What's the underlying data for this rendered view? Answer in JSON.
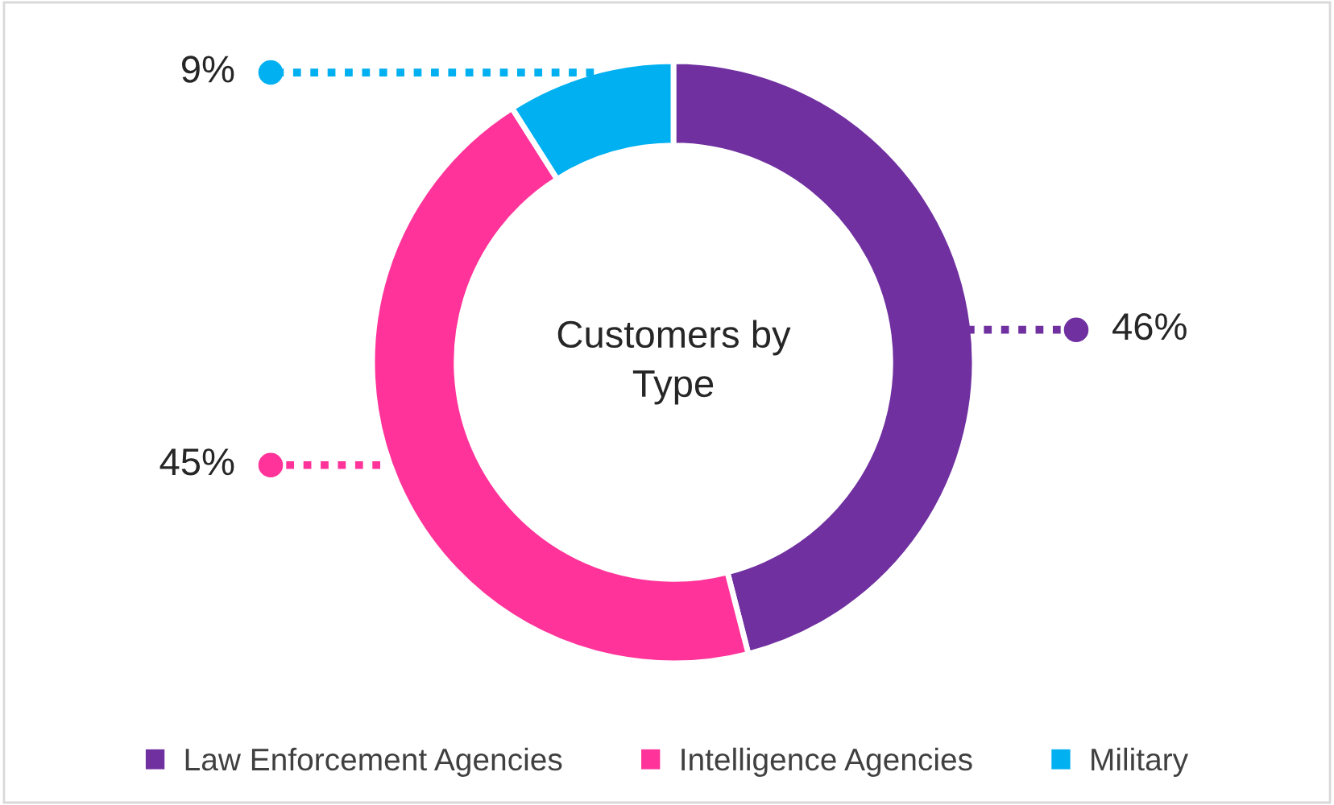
{
  "chart_data": {
    "type": "donut",
    "title": "Customers by\nType",
    "categories": [
      "Law Enforcement Agencies",
      "Intelligence Agencies",
      "Military"
    ],
    "values": [
      46,
      45,
      9
    ],
    "colors": [
      "#7030a0",
      "#ff3399",
      "#00b0f0"
    ],
    "value_labels": [
      "46%",
      "45%",
      "9%"
    ],
    "legend": "bottom"
  }
}
